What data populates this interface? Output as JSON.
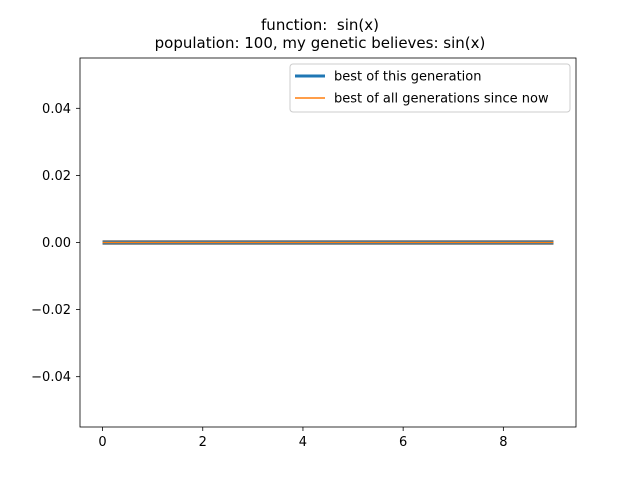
{
  "chart_data": {
    "type": "line",
    "title_line1": "function:  sin(x)",
    "title_line2": "population: 100, my genetic believes: sin(x)",
    "xlabel": "",
    "ylabel": "",
    "xlim": [
      -0.45,
      9.45
    ],
    "ylim": [
      -0.055,
      0.055
    ],
    "x_ticks": [
      0,
      2,
      4,
      6,
      8
    ],
    "y_ticks": [
      0.04,
      0.02,
      0.0,
      -0.02,
      -0.04
    ],
    "x_tick_labels": [
      "0",
      "2",
      "4",
      "6",
      "8"
    ],
    "y_tick_labels": [
      "0.04",
      "0.02",
      "0.00",
      "−0.02",
      "−0.04"
    ],
    "legend_position": "top-right",
    "grid": false,
    "x": [
      0,
      1,
      2,
      3,
      4,
      5,
      6,
      7,
      8,
      9
    ],
    "series": [
      {
        "name": "best of this generation",
        "color": "#1f77b4",
        "values": [
          0,
          0,
          0,
          0,
          0,
          0,
          0,
          0,
          0,
          0
        ]
      },
      {
        "name": "best of all generations since now",
        "color": "#ff7f0e",
        "values": [
          0,
          0,
          0,
          0,
          0,
          0,
          0,
          0,
          0,
          0
        ]
      }
    ]
  }
}
